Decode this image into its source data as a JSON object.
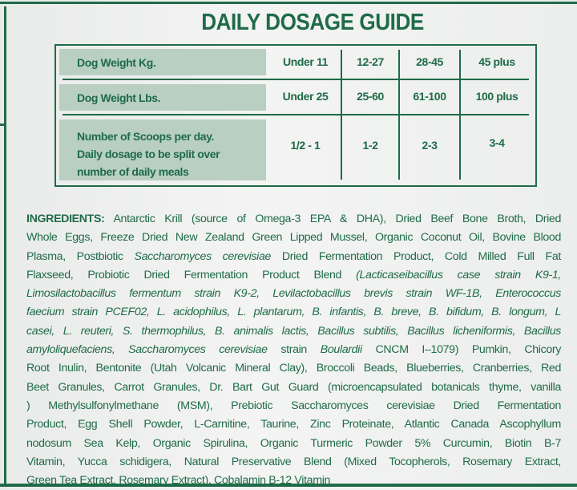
{
  "title": "DAILY DOSAGE GUIDE",
  "colors": {
    "green": "#1f6b48",
    "header_shade": "#b8cfc2"
  },
  "table": {
    "rows": [
      {
        "label": "Dog Weight Kg.",
        "values": [
          "Under 11",
          "12-27",
          "28-45",
          "45 plus"
        ]
      },
      {
        "label": "Dog Weight Lbs.",
        "values": [
          "Under 25",
          "25-60",
          "61-100",
          "100 plus"
        ]
      },
      {
        "label_lines": [
          "Number of Scoops per day.",
          "Daily dosage to be split over",
          "number of daily meals"
        ],
        "values": [
          "1/2 - 1",
          "1-2",
          "2-3",
          "3-4"
        ]
      }
    ]
  },
  "ingredients": {
    "lines": [
      [
        {
          "t": "INGREDIENTS:",
          "s": "b"
        },
        {
          "t": " Antarctic Krill (source of Omega-3 EPA & DHA), Dried Beef Bone Broth, Dried"
        }
      ],
      [
        {
          "t": "Whole Eggs, Freeze Dried New Zealand Green Lipped Mussel, Organic Coconut Oil, Bovine Blood"
        }
      ],
      [
        {
          "t": "Plasma, Postbiotic "
        },
        {
          "t": "Saccharomyces cerevisiae",
          "s": "i"
        },
        {
          "t": " Dried Fermentation Product, Cold Milled Full Fat"
        }
      ],
      [
        {
          "t": "Flaxseed, Probiotic Dried Fermentation Product Blend "
        },
        {
          "t": "(Lacticaseibacillus case strain K9-1,",
          "s": "i"
        }
      ],
      [
        {
          "t": "Limosilactobacillus fermentum strain K9-2, Levilactobacillus brevis strain WF-1B, Enterococcus",
          "s": "i"
        }
      ],
      [
        {
          "t": "faecium strain PCEF02, L. acidophilus, L. plantarum,  B. infantis, B. breve, B. bifidum,  B. longum, L",
          "s": "i"
        }
      ],
      [
        {
          "t": "casei, L. reuteri,  S. thermophilus, B. animalis lactis, Bacillus subtilis, Bacillus licheniformis, Bacillus",
          "s": "i"
        }
      ],
      [
        {
          "t": "amyloliquefaciens,  Saccharomyces cerevisiae",
          "s": "i"
        },
        {
          "t": " strain "
        },
        {
          "t": "Boulardii",
          "s": "i"
        },
        {
          "t": " CNCM I–1079) Pumkin, Chicory"
        }
      ],
      [
        {
          "t": "Root Inulin, Bentonite (Utah Volcanic Mineral Clay), Broccoli Beads, Blueberries, Cranberries, Red"
        }
      ],
      [
        {
          "t": "Beet Granules, Carrot Granules, Dr. Bart Gut Guard (microencapsulated botanicals thyme, vanilla"
        }
      ],
      [
        {
          "t": ") Methylsulfonylmethane (MSM), Prebiotic Saccharomyces cerevisiae Dried Fermentation"
        }
      ],
      [
        {
          "t": "Product, Egg Shell Powder, L-Carnitine, Taurine, Zinc Proteinate, Atlantic Canada Ascophyllum"
        }
      ],
      [
        {
          "t": "nodosum Sea Kelp, Organic Spirulina, Organic Turmeric Powder 5% Curcumin, Biotin B-7"
        }
      ],
      [
        {
          "t": "Vitamin, Yucca schidigera, Natural Preservative Blend (Mixed Tocopherols, Rosemary Extract,"
        }
      ],
      [
        {
          "t": "Green Tea Extract, Rosemary Extract), Cobalamin B-12 Vitamin"
        }
      ]
    ]
  }
}
